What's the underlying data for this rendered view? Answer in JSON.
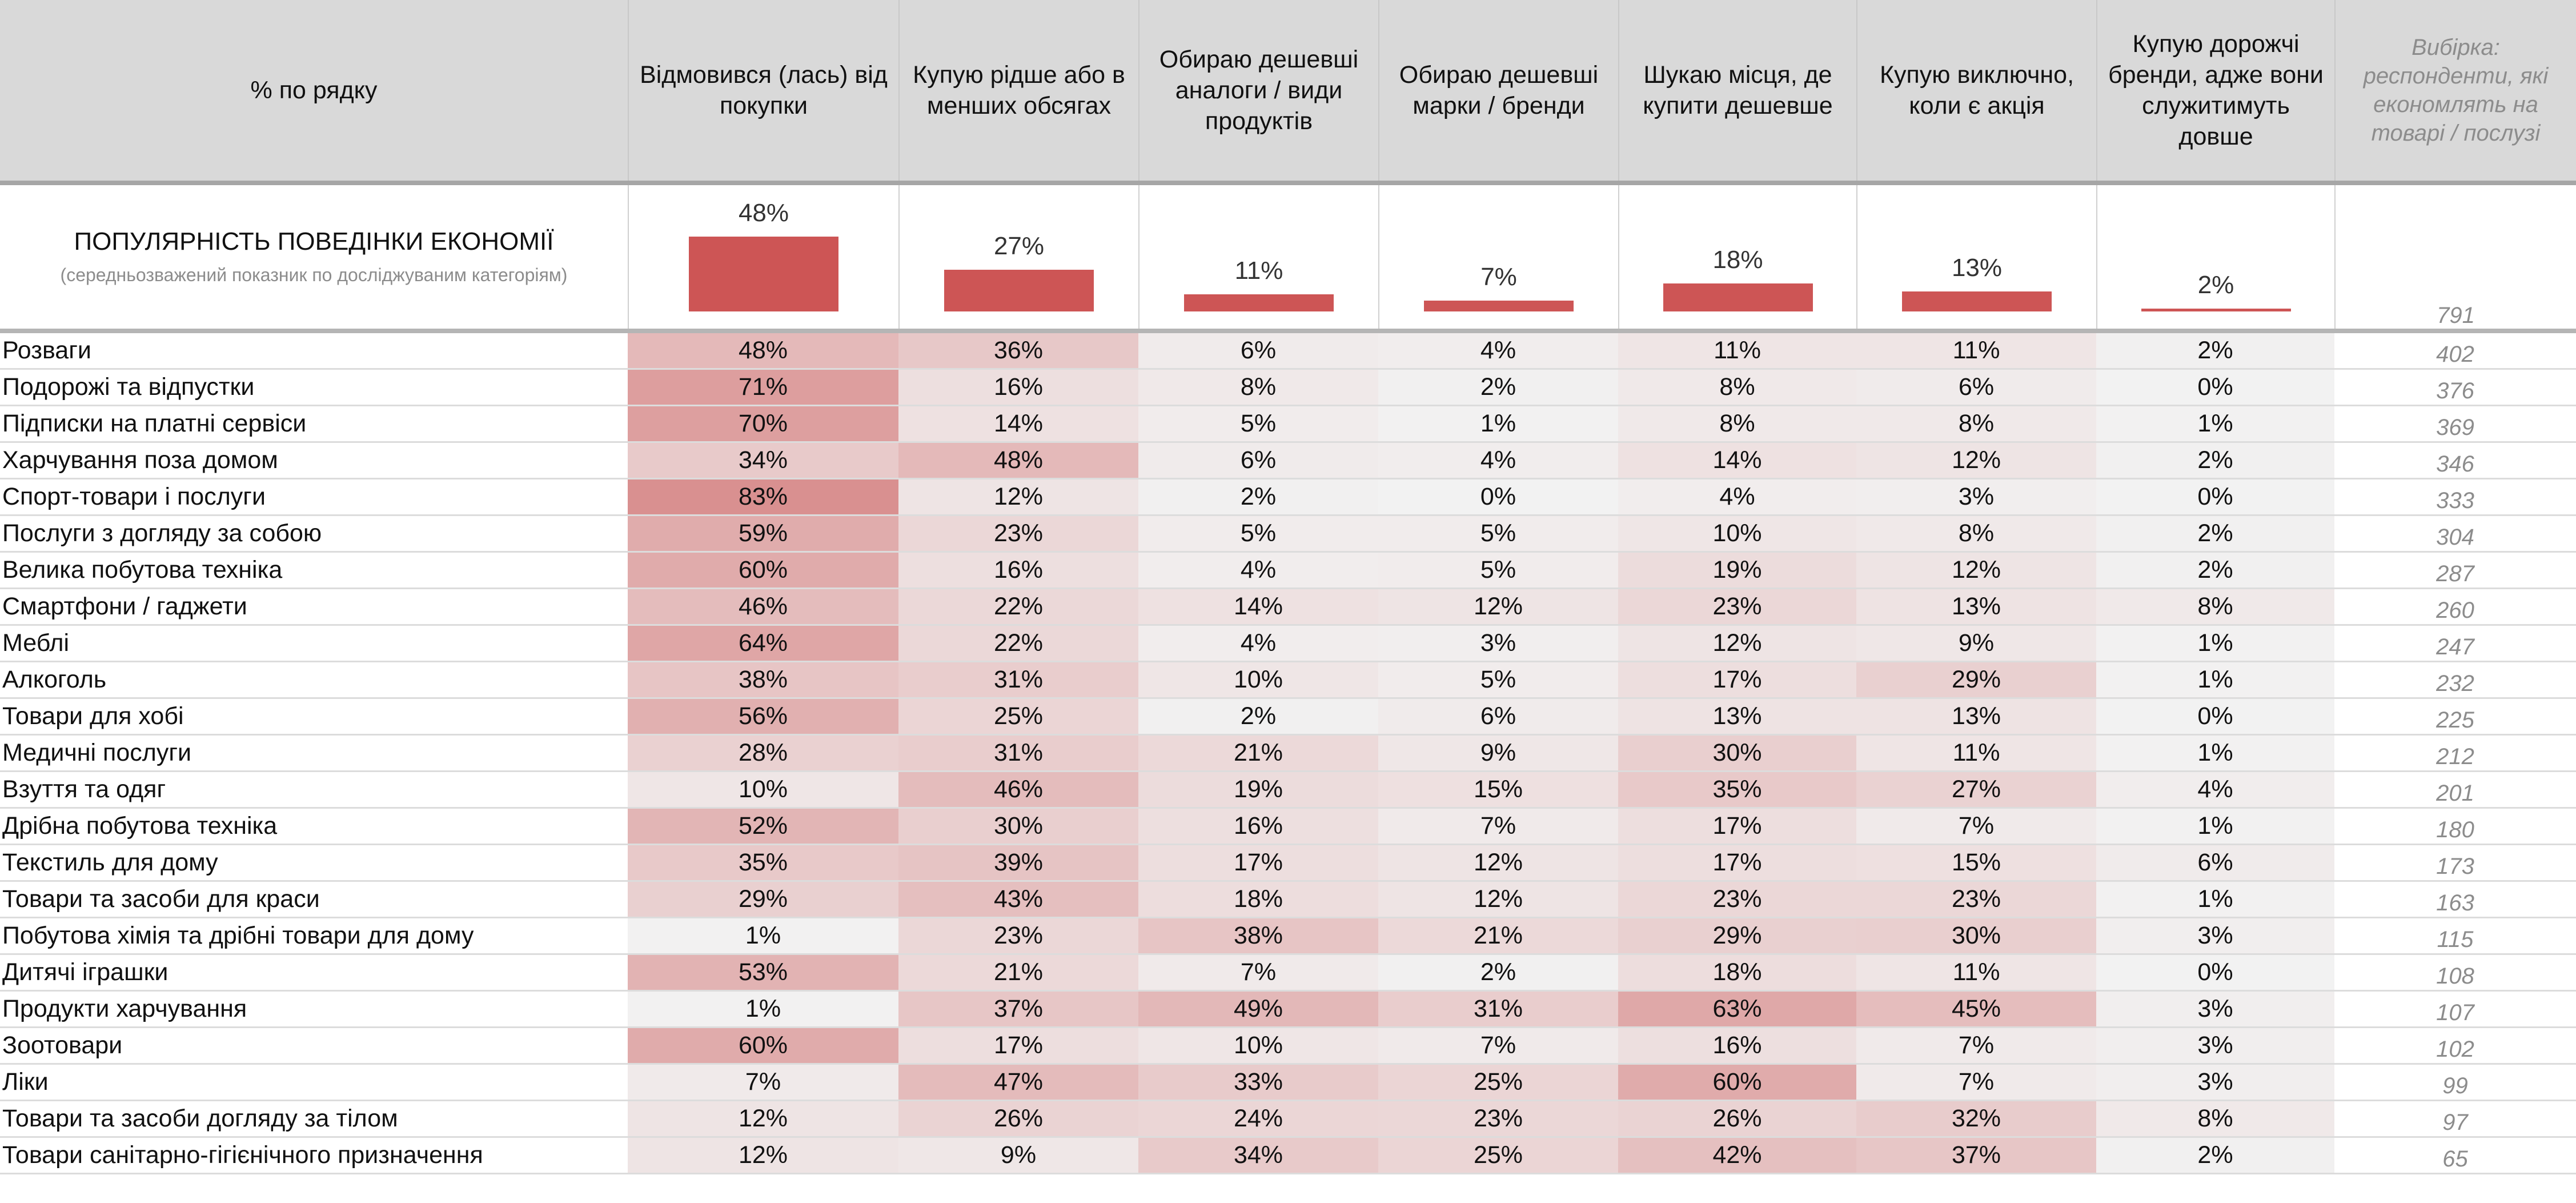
{
  "chart_data": {
    "type": "heatmap",
    "corner_label": "% по рядку",
    "columns": [
      "Відмовився (лась) від покупки",
      "Купую рідше або в менших обсягах",
      "Обираю дешевші аналоги / види продуктів",
      "Обираю дешевші марки / бренди",
      "Шукаю місця, де купити дешевше",
      "Купую виключно, коли є акція",
      "Купую дорожчі бренди, адже вони служитимуть довше"
    ],
    "sample_header": "Вибірка: респонденти, які економлять на товарі / послузі",
    "summary": {
      "title": "ПОПУЛЯРНІСТЬ ПОВЕДІНКИ ЕКОНОМІЇ",
      "subtitle": "(середньозважений показник по досліджуваним категоріям)",
      "values": [
        48,
        27,
        11,
        7,
        18,
        13,
        2
      ],
      "sample": 791
    },
    "rows": [
      {
        "label": "Розваги",
        "values": [
          48,
          36,
          6,
          4,
          11,
          11,
          2
        ],
        "sample": 402
      },
      {
        "label": "Подорожі та відпустки",
        "values": [
          71,
          16,
          8,
          2,
          8,
          6,
          0
        ],
        "sample": 376
      },
      {
        "label": "Підписки на платні сервіси",
        "values": [
          70,
          14,
          5,
          1,
          8,
          8,
          1
        ],
        "sample": 369
      },
      {
        "label": "Харчування поза домом",
        "values": [
          34,
          48,
          6,
          4,
          14,
          12,
          2
        ],
        "sample": 346
      },
      {
        "label": "Спорт-товари і послуги",
        "values": [
          83,
          12,
          2,
          0,
          4,
          3,
          0
        ],
        "sample": 333
      },
      {
        "label": "Послуги з догляду за собою",
        "values": [
          59,
          23,
          5,
          5,
          10,
          8,
          2
        ],
        "sample": 304
      },
      {
        "label": "Велика побутова техніка",
        "values": [
          60,
          16,
          4,
          5,
          19,
          12,
          2
        ],
        "sample": 287
      },
      {
        "label": "Смартфони / гаджети",
        "values": [
          46,
          22,
          14,
          12,
          23,
          13,
          8
        ],
        "sample": 260
      },
      {
        "label": "Меблі",
        "values": [
          64,
          22,
          4,
          3,
          12,
          9,
          1
        ],
        "sample": 247
      },
      {
        "label": "Алкоголь",
        "values": [
          38,
          31,
          10,
          5,
          17,
          29,
          1
        ],
        "sample": 232
      },
      {
        "label": "Товари для хобі",
        "values": [
          56,
          25,
          2,
          6,
          13,
          13,
          0
        ],
        "sample": 225
      },
      {
        "label": "Медичні послуги",
        "values": [
          28,
          31,
          21,
          9,
          30,
          11,
          1
        ],
        "sample": 212
      },
      {
        "label": "Взуття та одяг",
        "values": [
          10,
          46,
          19,
          15,
          35,
          27,
          4
        ],
        "sample": 201
      },
      {
        "label": "Дрібна побутова техніка",
        "values": [
          52,
          30,
          16,
          7,
          17,
          7,
          1
        ],
        "sample": 180
      },
      {
        "label": "Текстиль для дому",
        "values": [
          35,
          39,
          17,
          12,
          17,
          15,
          6
        ],
        "sample": 173
      },
      {
        "label": "Товари та засоби для краси",
        "values": [
          29,
          43,
          18,
          12,
          23,
          23,
          1
        ],
        "sample": 163
      },
      {
        "label": "Побутова хімія та дрібні товари для дому",
        "values": [
          1,
          23,
          38,
          21,
          29,
          30,
          3
        ],
        "sample": 115
      },
      {
        "label": "Дитячі іграшки",
        "values": [
          53,
          21,
          7,
          2,
          18,
          11,
          0
        ],
        "sample": 108
      },
      {
        "label": "Продукти харчування",
        "values": [
          1,
          37,
          49,
          31,
          63,
          45,
          3
        ],
        "sample": 107
      },
      {
        "label": "Зоотовари",
        "values": [
          60,
          17,
          10,
          7,
          16,
          7,
          3
        ],
        "sample": 102
      },
      {
        "label": "Ліки",
        "values": [
          7,
          47,
          33,
          25,
          60,
          7,
          3
        ],
        "sample": 99
      },
      {
        "label": "Товари та засоби догляду за тілом",
        "values": [
          12,
          26,
          24,
          23,
          26,
          32,
          8
        ],
        "sample": 97
      },
      {
        "label": "Товари санітарно-гігієнічного призначення",
        "values": [
          12,
          9,
          34,
          25,
          42,
          37,
          2
        ],
        "sample": 65
      }
    ],
    "value_unit": "%",
    "colors": {
      "bar": "#cd5555",
      "heat_low": "#f2f2f2",
      "heat_high": "#d98f8f",
      "header_bg": "#d9d9d9",
      "sample_text": "#8c8c8c"
    }
  }
}
